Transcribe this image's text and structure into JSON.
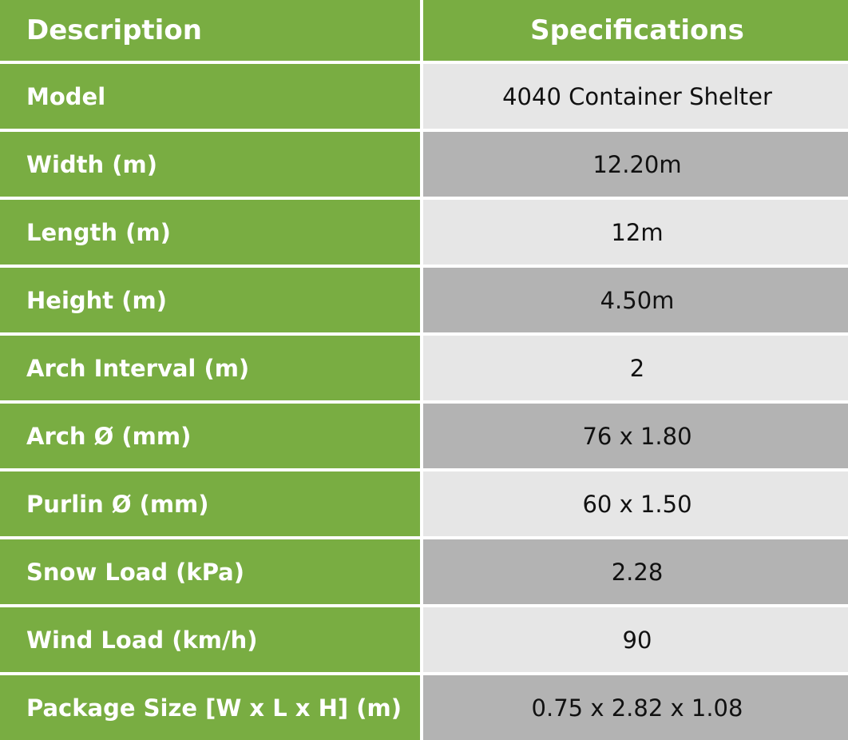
{
  "header": {
    "description_label": "Description",
    "specifications_label": "Specifications"
  },
  "colors": {
    "green": "#79ad42",
    "row_light": "#e6e6e6",
    "row_dark": "#b3b3b3"
  },
  "rows": [
    {
      "description": "Model",
      "specification": "4040 Container Shelter"
    },
    {
      "description": "Width (m)",
      "specification": "12.20m"
    },
    {
      "description": "Length (m)",
      "specification": "12m"
    },
    {
      "description": "Height (m)",
      "specification": "4.50m"
    },
    {
      "description": "Arch Interval (m)",
      "specification": "2"
    },
    {
      "description": "Arch Ø (mm)",
      "specification": "76 x 1.80"
    },
    {
      "description": "Purlin Ø (mm)",
      "specification": "60 x 1.50"
    },
    {
      "description": "Snow Load (kPa)",
      "specification": "2.28"
    },
    {
      "description": "Wind Load (km/h)",
      "specification": "90"
    },
    {
      "description": "Package Size [W x L x H] (m)",
      "specification": "0.75 x 2.82 x 1.08"
    }
  ]
}
